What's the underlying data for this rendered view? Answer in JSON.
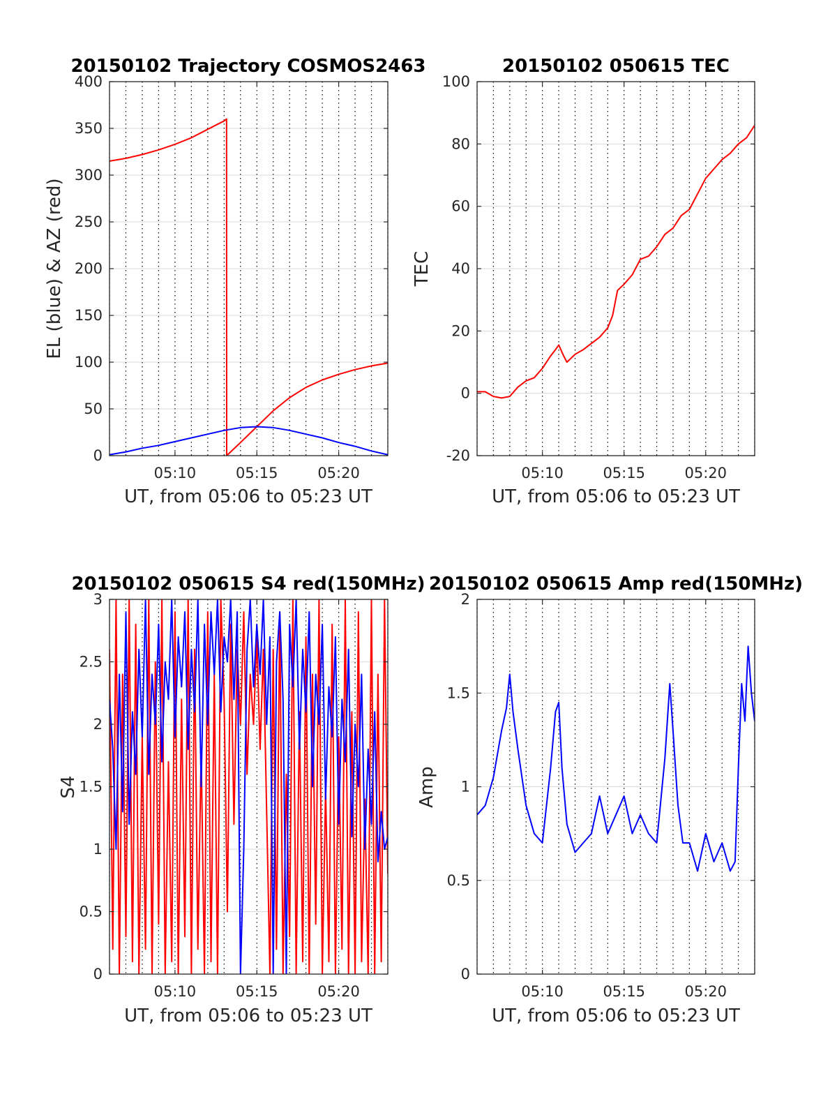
{
  "colors": {
    "red": "#ff0000",
    "blue": "#0000ff",
    "grid": "#d9d9d9",
    "vline": "#000000",
    "axis": "#262626"
  },
  "chart_data": [
    {
      "id": "trajectory",
      "type": "line",
      "title": "20150102 Trajectory COSMOS2463",
      "xlabel": "UT, from 05:06 to 05:23 UT",
      "ylabel": "EL (blue) & AZ (red)",
      "xlim": [
        306.0,
        323.0
      ],
      "ylim": [
        0,
        400
      ],
      "xticks": [
        310,
        315,
        320
      ],
      "xtick_labels": [
        "05:10",
        "05:15",
        "05:20"
      ],
      "yticks": [
        0,
        50,
        100,
        150,
        200,
        250,
        300,
        350,
        400
      ],
      "ytick_labels": [
        "0",
        "50",
        "100",
        "150",
        "200",
        "250",
        "300",
        "350",
        "400"
      ],
      "series": [
        {
          "name": "",
          "color": "red",
          "x": [
            306.0,
            307.0,
            308.0,
            309.0,
            310.0,
            311.0,
            312.0,
            313.0,
            313.15,
            313.16,
            314.0,
            315.0,
            316.0,
            317.0,
            318.0,
            319.0,
            320.0,
            321.0,
            322.0,
            323.0
          ],
          "y": [
            315,
            318,
            322,
            327,
            333,
            340,
            349,
            358,
            360,
            0,
            14,
            31,
            48,
            62,
            73,
            81,
            87,
            92,
            96,
            99
          ]
        },
        {
          "name": "",
          "color": "blue",
          "x": [
            306.0,
            307.0,
            308.0,
            309.0,
            310.0,
            311.0,
            312.0,
            313.0,
            314.0,
            315.0,
            316.0,
            317.0,
            318.0,
            319.0,
            320.0,
            321.0,
            322.0,
            323.0
          ],
          "y": [
            1,
            4,
            8,
            11,
            15,
            19,
            23,
            27,
            30,
            31,
            30,
            27,
            23,
            19,
            14,
            10,
            5,
            1
          ]
        }
      ]
    },
    {
      "id": "tec",
      "type": "line",
      "title": "20150102 050615 TEC",
      "xlabel": "UT, from 05:06 to 05:23 UT",
      "ylabel": "TEC",
      "xlim": [
        306.0,
        323.0
      ],
      "ylim": [
        -20,
        100
      ],
      "xticks": [
        310,
        315,
        320
      ],
      "xtick_labels": [
        "05:10",
        "05:15",
        "05:20"
      ],
      "yticks": [
        -20,
        0,
        20,
        40,
        60,
        80,
        100
      ],
      "ytick_labels": [
        "-20",
        "0",
        "20",
        "40",
        "60",
        "80",
        "100"
      ],
      "series": [
        {
          "name": "",
          "color": "red",
          "x": [
            306.0,
            306.5,
            307.0,
            307.5,
            308.0,
            308.5,
            309.0,
            309.5,
            310.0,
            310.5,
            310.8,
            311.0,
            311.3,
            311.5,
            312.0,
            312.5,
            313.0,
            313.5,
            314.0,
            314.3,
            314.6,
            315.0,
            315.5,
            316.0,
            316.5,
            317.0,
            317.5,
            318.0,
            318.5,
            319.0,
            319.5,
            320.0,
            320.5,
            321.0,
            321.5,
            322.0,
            322.5,
            323.0
          ],
          "y": [
            0.5,
            0.5,
            -1,
            -1.5,
            -1,
            2,
            4,
            5,
            8,
            12,
            14,
            15.5,
            12,
            10,
            12.5,
            14,
            16,
            18,
            21,
            25,
            33,
            35,
            38,
            43,
            44,
            47,
            51,
            53,
            57,
            59,
            64,
            69,
            72,
            75,
            77,
            80,
            82,
            86
          ]
        }
      ]
    },
    {
      "id": "s4",
      "type": "line",
      "title": "20150102 050615 S4 red(150MHz)",
      "xlabel": "UT, from 05:06 to 05:23 UT",
      "ylabel": "S4",
      "xlim": [
        306.0,
        323.0
      ],
      "ylim": [
        0,
        3
      ],
      "xticks": [
        310,
        315,
        320
      ],
      "xtick_labels": [
        "05:10",
        "05:15",
        "05:20"
      ],
      "yticks": [
        0,
        0.5,
        1,
        1.5,
        2,
        2.5,
        3
      ],
      "ytick_labels": [
        "0",
        "0.5",
        "1",
        "1.5",
        "2",
        "2.5",
        "3"
      ],
      "series": [
        {
          "name": "",
          "color": "red",
          "x": [
            306.0,
            306.2,
            306.4,
            306.6,
            306.8,
            307.0,
            307.2,
            307.4,
            307.6,
            307.8,
            308.0,
            308.2,
            308.4,
            308.6,
            308.8,
            309.0,
            309.2,
            309.4,
            309.6,
            309.8,
            310.0,
            310.2,
            310.4,
            310.6,
            310.8,
            311.0,
            311.2,
            311.4,
            311.6,
            311.8,
            312.0,
            312.2,
            312.4,
            312.6,
            312.8,
            313.0,
            313.2,
            313.4,
            313.6,
            313.8,
            314.0,
            314.2,
            314.4,
            314.6,
            314.8,
            315.0,
            315.2,
            315.4,
            315.6,
            315.8,
            316.0,
            316.2,
            316.4,
            316.6,
            316.8,
            317.0,
            317.2,
            317.4,
            317.6,
            317.8,
            318.0,
            318.2,
            318.4,
            318.6,
            318.8,
            319.0,
            319.2,
            319.4,
            319.6,
            319.8,
            320.0,
            320.2,
            320.4,
            320.6,
            320.8,
            321.0,
            321.2,
            321.4,
            321.6,
            321.8,
            322.0,
            322.2,
            322.4,
            322.6,
            322.8,
            323.0
          ],
          "y": [
            2.6,
            0.2,
            3.0,
            0.0,
            2.4,
            0.3,
            3.0,
            0.1,
            2.8,
            0.0,
            1.9,
            0.2,
            3.0,
            0.0,
            2.5,
            0.4,
            3.0,
            0.0,
            1.7,
            0.1,
            2.9,
            0.0,
            2.2,
            0.3,
            3.0,
            0.0,
            2.6,
            0.2,
            1.8,
            0.0,
            2.9,
            0.1,
            2.4,
            0.0,
            3.0,
            2.2,
            0.5,
            2.8,
            1.2,
            2.6,
            2.0,
            2.9,
            1.6,
            2.4,
            2.0,
            2.7,
            1.8,
            2.6,
            1.3,
            0.0,
            2.6,
            0.2,
            2.9,
            0.0,
            1.6,
            0.3,
            3.0,
            0.0,
            2.1,
            0.1,
            2.7,
            0.0,
            2.4,
            0.4,
            3.0,
            0.0,
            1.5,
            0.1,
            2.8,
            0.0,
            1.9,
            0.2,
            3.0,
            0.0,
            2.1,
            0.0,
            2.9,
            0.1,
            1.4,
            0.0,
            3.0,
            0.0,
            2.4,
            0.1,
            3.0,
            0.8
          ]
        },
        {
          "name": "",
          "color": "blue",
          "x": [
            306.0,
            306.2,
            306.4,
            306.6,
            306.8,
            307.0,
            307.2,
            307.4,
            307.6,
            307.8,
            308.0,
            308.2,
            308.4,
            308.6,
            308.8,
            309.0,
            309.2,
            309.4,
            309.6,
            309.8,
            310.0,
            310.2,
            310.4,
            310.6,
            310.8,
            311.0,
            311.2,
            311.4,
            311.6,
            311.8,
            312.0,
            312.2,
            312.4,
            312.6,
            312.8,
            313.0,
            313.2,
            313.4,
            313.6,
            313.8,
            314.0,
            314.2,
            314.4,
            314.6,
            314.8,
            315.0,
            315.2,
            315.4,
            315.6,
            315.8,
            316.0,
            316.2,
            316.4,
            316.6,
            316.8,
            317.0,
            317.2,
            317.4,
            317.6,
            317.8,
            318.0,
            318.2,
            318.4,
            318.6,
            318.8,
            319.0,
            319.2,
            319.4,
            319.6,
            319.8,
            320.0,
            320.2,
            320.4,
            320.6,
            320.8,
            321.0,
            321.2,
            321.4,
            321.6,
            321.8,
            322.0,
            322.2,
            322.4,
            322.6,
            322.8,
            323.0
          ],
          "y": [
            2.2,
            1.8,
            1.0,
            2.4,
            1.3,
            2.9,
            1.2,
            2.1,
            1.6,
            2.6,
            1.9,
            3.0,
            1.6,
            2.4,
            2.0,
            2.8,
            1.7,
            2.5,
            2.2,
            3.0,
            1.9,
            2.7,
            2.3,
            2.9,
            1.8,
            2.6,
            2.1,
            3.0,
            1.5,
            2.8,
            2.0,
            2.9,
            2.4,
            3.0,
            2.1,
            2.7,
            2.5,
            3.0,
            2.2,
            2.9,
            0.0,
            1.0,
            2.6,
            3.0,
            2.3,
            2.8,
            2.4,
            3.0,
            2.0,
            2.7,
            0.0,
            2.5,
            2.9,
            2.2,
            0.0,
            2.8,
            2.3,
            3.0,
            1.8,
            2.6,
            2.1,
            2.9,
            1.5,
            2.4,
            2.0,
            2.8,
            1.4,
            2.3,
            1.9,
            2.7,
            1.2,
            2.2,
            1.7,
            2.6,
            1.1,
            2.0,
            1.5,
            2.4,
            1.0,
            1.8,
            1.2,
            2.1,
            0.9,
            1.3,
            1.0,
            1.1
          ]
        }
      ]
    },
    {
      "id": "amp",
      "type": "line",
      "title": "20150102 050615 Amp red(150MHz)",
      "xlabel": "UT, from 05:06 to 05:23 UT",
      "ylabel": "Amp",
      "xlim": [
        306.0,
        323.0
      ],
      "ylim": [
        0,
        2
      ],
      "xticks": [
        310,
        315,
        320
      ],
      "xtick_labels": [
        "05:10",
        "05:15",
        "05:20"
      ],
      "yticks": [
        0,
        0.5,
        1,
        1.5,
        2
      ],
      "ytick_labels": [
        "0",
        "0.5",
        "1",
        "1.5",
        "2"
      ],
      "series": [
        {
          "name": "",
          "color": "blue",
          "x": [
            306.0,
            306.5,
            307.0,
            307.5,
            307.8,
            308.0,
            308.2,
            308.5,
            309.0,
            309.5,
            310.0,
            310.5,
            310.8,
            311.0,
            311.2,
            311.5,
            312.0,
            312.5,
            313.0,
            313.5,
            314.0,
            314.5,
            315.0,
            315.5,
            316.0,
            316.5,
            317.0,
            317.5,
            317.8,
            318.0,
            318.3,
            318.6,
            319.0,
            319.5,
            320.0,
            320.5,
            321.0,
            321.5,
            321.8,
            322.0,
            322.2,
            322.4,
            322.6,
            322.8,
            323.0
          ],
          "y": [
            0.85,
            0.9,
            1.05,
            1.3,
            1.42,
            1.6,
            1.4,
            1.2,
            0.9,
            0.75,
            0.7,
            1.1,
            1.4,
            1.45,
            1.1,
            0.8,
            0.65,
            0.7,
            0.75,
            0.95,
            0.75,
            0.85,
            0.95,
            0.75,
            0.85,
            0.75,
            0.7,
            1.15,
            1.55,
            1.3,
            0.9,
            0.7,
            0.7,
            0.55,
            0.75,
            0.6,
            0.7,
            0.55,
            0.6,
            1.1,
            1.55,
            1.35,
            1.75,
            1.5,
            1.35
          ]
        }
      ]
    }
  ]
}
